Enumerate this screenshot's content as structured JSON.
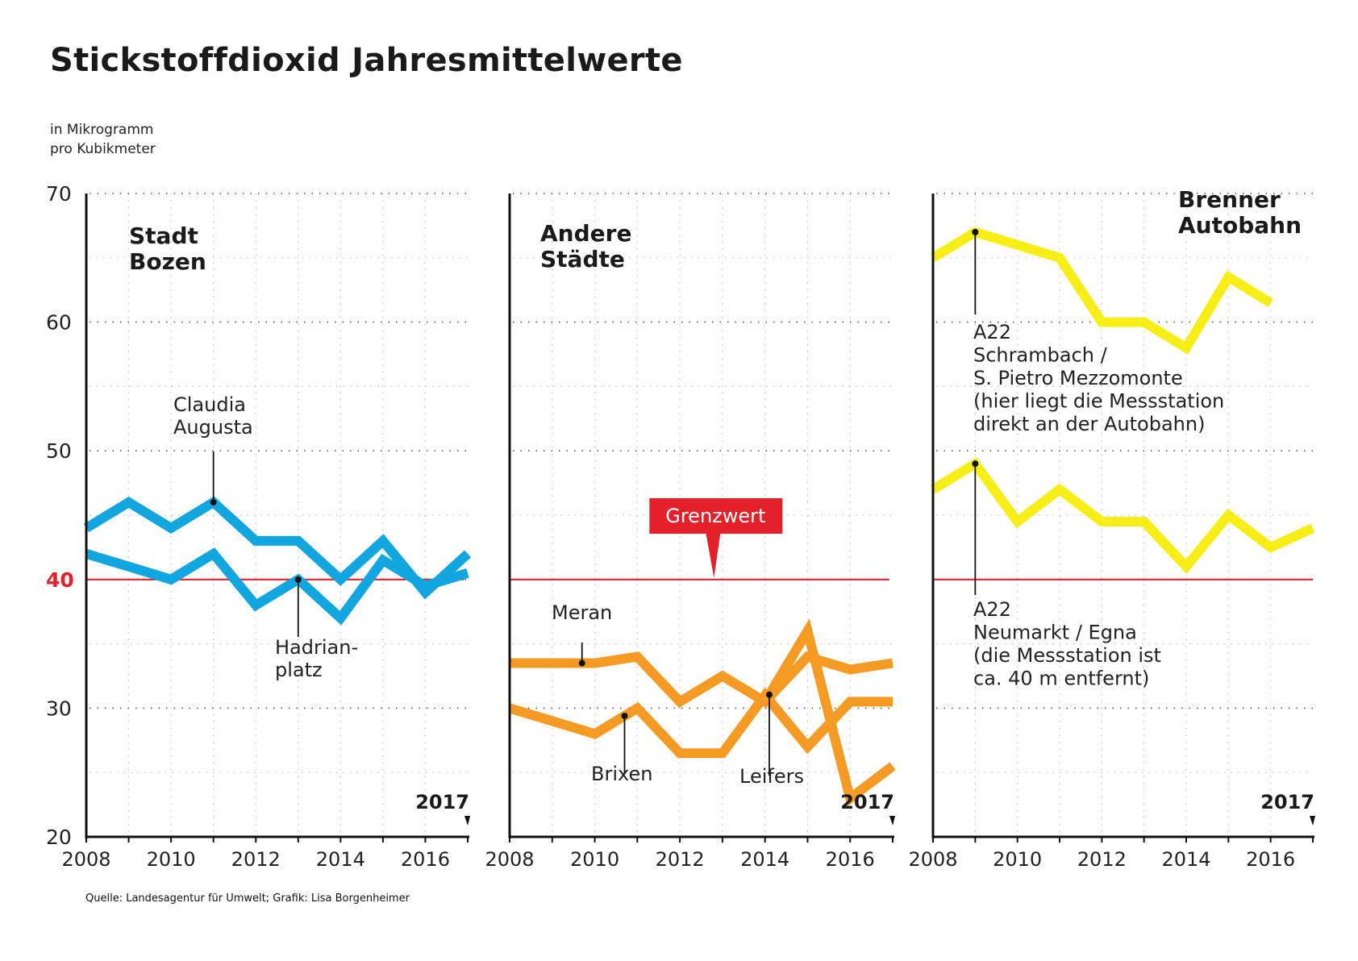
{
  "title": "Stickstoffdioxid Jahresmittelwerte",
  "unit_line1": "in Mikrogramm",
  "unit_line2": "pro Kubikmeter",
  "source": "Quelle: Landesagentur für Umwelt; Grafik: Lisa Borgenheimer",
  "colors": {
    "bozen": "#12a6e1",
    "andere": "#f59a23",
    "brenner": "#f7ee17",
    "limit": "#e4202b",
    "text": "#1a1a1a"
  },
  "chart_data": [
    {
      "type": "line",
      "panel": "Stadt Bozen",
      "heading": [
        "Stadt",
        "Bozen"
      ],
      "color": "#12a6e1",
      "x": [
        2008,
        2009,
        2010,
        2011,
        2012,
        2013,
        2014,
        2015,
        2016,
        2017
      ],
      "xticks": [
        "2008",
        "2010",
        "2012",
        "2014",
        "2016"
      ],
      "last_year_label": "2017",
      "yticks": [
        "70",
        "60",
        "50",
        "40",
        "30",
        "20"
      ],
      "ylim": [
        20,
        70
      ],
      "limit_value": 40,
      "grid": true,
      "series": [
        {
          "name": "Claudia Augusta",
          "values": [
            44,
            46,
            44,
            46,
            43,
            43,
            40,
            43,
            39,
            42
          ]
        },
        {
          "name": "Hadrianplatz",
          "values": [
            42,
            41,
            40,
            42,
            38,
            40,
            37,
            41.5,
            39.5,
            40.5
          ]
        }
      ],
      "annotations": [
        {
          "lines": [
            "Claudia",
            "Augusta"
          ],
          "series": 0,
          "year": 2011
        },
        {
          "lines": [
            "Hadrian-",
            "platz"
          ],
          "series": 1,
          "year": 2013
        }
      ]
    },
    {
      "type": "line",
      "panel": "Andere Städte",
      "heading": [
        "Andere",
        "Städte"
      ],
      "color": "#f59a23",
      "x": [
        2008,
        2009,
        2010,
        2011,
        2012,
        2013,
        2014,
        2015,
        2016,
        2017
      ],
      "xticks": [
        "2008",
        "2010",
        "2012",
        "2014",
        "2016"
      ],
      "last_year_label": "2017",
      "ylim": [
        20,
        70
      ],
      "limit_value": 40,
      "limit_label": "Grenzwert",
      "grid": true,
      "series": [
        {
          "name": "Meran",
          "values": [
            33.5,
            33.5,
            33.5,
            34,
            30.5,
            32.5,
            30.5,
            34,
            33,
            33.5
          ]
        },
        {
          "name": "Brixen",
          "values": [
            30,
            29,
            28,
            30,
            26.5,
            26.5,
            31,
            27,
            30.5,
            30.5
          ]
        },
        {
          "name": "Leifers",
          "values": [
            null,
            null,
            null,
            null,
            null,
            null,
            30.5,
            36,
            23,
            25.5
          ]
        }
      ],
      "annotations": [
        {
          "lines": [
            "Meran"
          ],
          "series": 0,
          "year": 2009.7
        },
        {
          "lines": [
            "Brixen"
          ],
          "series": 1,
          "year": 2010.7
        },
        {
          "lines": [
            "Leifers"
          ],
          "series": 2,
          "year": 2014.1
        }
      ]
    },
    {
      "type": "line",
      "panel": "Brenner Autobahn",
      "heading": [
        "Brenner",
        "Autobahn"
      ],
      "color": "#f7ee17",
      "x": [
        2008,
        2009,
        2010,
        2011,
        2012,
        2013,
        2014,
        2015,
        2016,
        2017
      ],
      "xticks": [
        "2008",
        "2010",
        "2012",
        "2014",
        "2016"
      ],
      "last_year_label": "2017",
      "ylim": [
        20,
        70
      ],
      "limit_value": 40,
      "grid": true,
      "series": [
        {
          "name": "A22 Schrambach / S. Pietro Mezzomonte",
          "values": [
            65,
            67,
            66,
            65,
            60,
            60,
            58,
            63.5,
            61.5,
            null
          ]
        },
        {
          "name": "A22 Neumarkt / Egna",
          "values": [
            47,
            49,
            44.5,
            47,
            44.5,
            44.5,
            41,
            45,
            42.5,
            44
          ]
        }
      ],
      "annotations": [
        {
          "lines": [
            "A22",
            "Schrambach /",
            "S. Pietro Mezzomonte",
            "(hier liegt die Messstation",
            "direkt an der Autobahn)"
          ],
          "series": 0,
          "year": 2009
        },
        {
          "lines": [
            "A22",
            "Neumarkt / Egna",
            "(die Messstation ist",
            "ca. 40 m entfernt)"
          ],
          "series": 1,
          "year": 2009
        }
      ]
    }
  ]
}
